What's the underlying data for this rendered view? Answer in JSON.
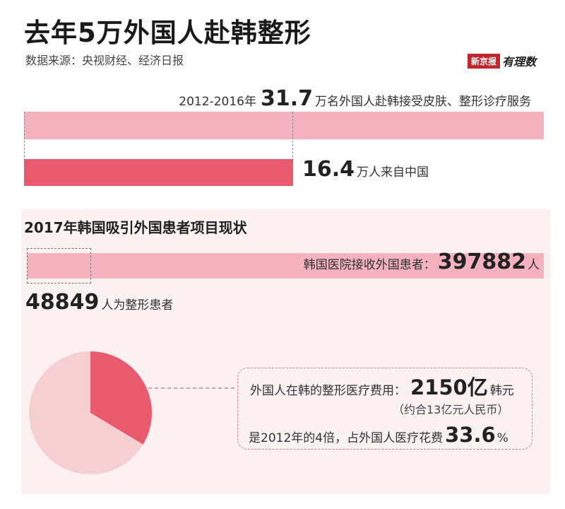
{
  "header": {
    "title": "去年5万外国人赴韩整形",
    "source": "数据来源：央视财经、经济日报",
    "logo_box": "新京报",
    "logo_hand": "有理数"
  },
  "section1": {
    "prefix": "2012-2016年",
    "total_value": "31.7",
    "total_suffix": "万名外国人赴韩接受皮肤、整形诊疗服务",
    "china_value": "16.4",
    "china_suffix": "万人来自中国"
  },
  "section2": {
    "title": "2017年韩国吸引外国患者项目现状",
    "patients_prefix": "韩国医院接收外国患者：",
    "patients_value": "397882",
    "patients_unit": "人",
    "cosmetic_value": "48849",
    "cosmetic_suffix": "人为整形患者",
    "cost_prefix": "外国人在韩的整形医疗费用：",
    "cost_value": "2150亿",
    "cost_unit": "韩元",
    "rmb_note": "（约合13亿元人民币）",
    "growth_prefix": "是2012年的4倍，占外国人医疗花费",
    "share_value": "33.6",
    "share_unit": "%"
  },
  "colors": {
    "light_pink": "#f4b2bf",
    "dark_pink": "#e95a6e",
    "pie_rest": "#f6cfd2",
    "panel_bg": "#fbf1f1",
    "dash_pink": "#e07b88"
  },
  "chart_data": [
    {
      "type": "bar",
      "categories": [
        "外国人赴韩接受皮肤、整形诊疗服务",
        "来自中国"
      ],
      "values": [
        31.7,
        16.4
      ],
      "unit": "万"
    },
    {
      "type": "bar",
      "categories": [
        "韩国医院接收外国患者",
        "整形患者"
      ],
      "values": [
        397882,
        48849
      ],
      "unit": "人"
    },
    {
      "type": "pie",
      "categories": [
        "整形医疗费用",
        "其他"
      ],
      "values": [
        33.6,
        66.4
      ],
      "unit": "%"
    }
  ]
}
